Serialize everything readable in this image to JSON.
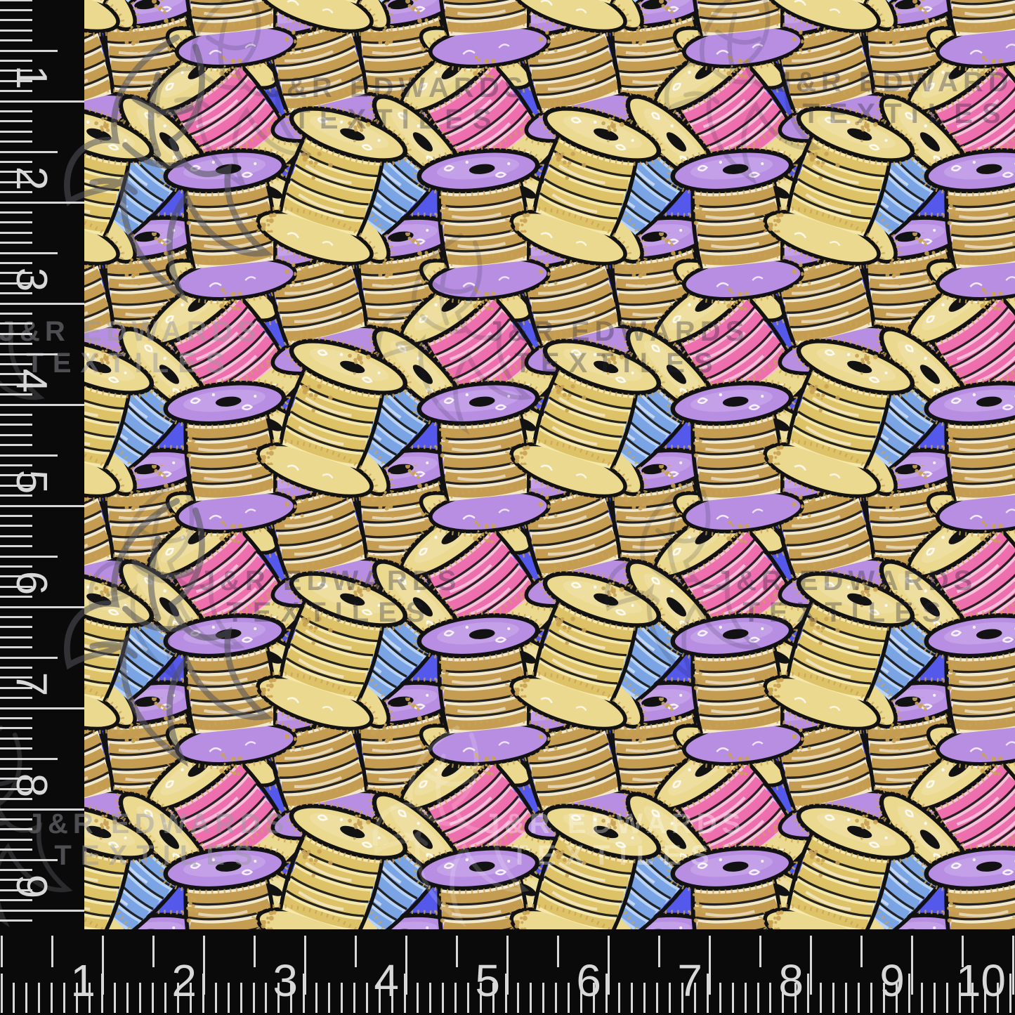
{
  "watermark": {
    "line1": "J&R EDWARDS",
    "line2": "TEXTILES"
  },
  "rulers": {
    "left": {
      "numbers": [
        "1",
        "2",
        "3",
        "4",
        "5",
        "6",
        "7",
        "8",
        "9"
      ]
    },
    "bottom": {
      "numbers": [
        "1",
        "2",
        "3",
        "4",
        "5",
        "6",
        "7",
        "8",
        "9",
        "10"
      ]
    }
  },
  "pattern": {
    "background": "#5458EB",
    "outline_ink": "#121212",
    "doodle_white": "#FFFFFF",
    "glitter_gold": "#C9A254",
    "glitter_magenta": "#C868CE",
    "flange_yellow": "#EBD98F",
    "flange_purple": "#B88EE2",
    "thread_gold_light": "#F2E9CC",
    "thread_gold_mid": "#C49D52",
    "thread_pink_light": "#F9C0DA",
    "thread_pink_mid": "#EE6FAE",
    "thread_blue_light": "#BAD4F7",
    "thread_blue_mid": "#7AA4E4",
    "thread_yellow_light": "#F4E8AC",
    "thread_yellow_mid": "#DEC267"
  },
  "ruler_style": {
    "black": "#0A0A0A",
    "marks": "#D8D8D8"
  }
}
